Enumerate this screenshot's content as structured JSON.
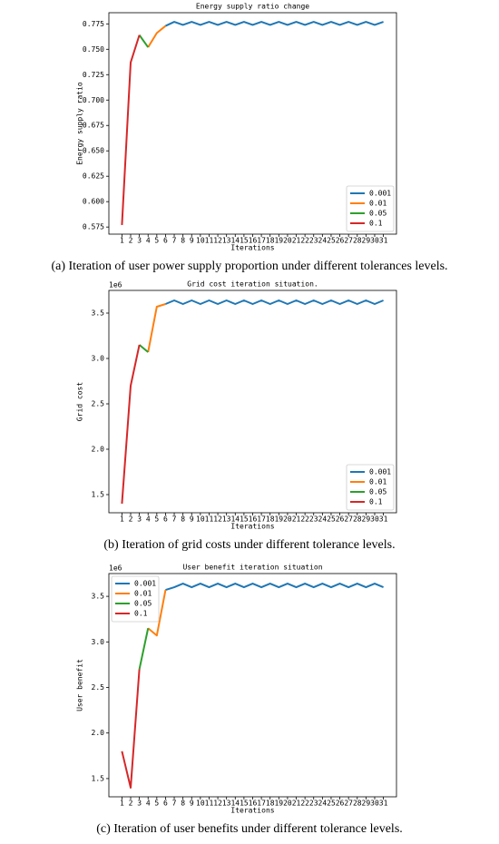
{
  "chart_data": [
    {
      "type": "line",
      "title": "Energy supply ratio change",
      "xlabel": "Iterations",
      "ylabel": "Energy supply ratio",
      "caption": "(a) Iteration of user power supply proportion under different tolerances levels.",
      "x": [
        1,
        2,
        3,
        4,
        5,
        6,
        7,
        8,
        9,
        10,
        11,
        12,
        13,
        14,
        15,
        16,
        17,
        18,
        19,
        20,
        21,
        22,
        23,
        24,
        25,
        26,
        27,
        28,
        29,
        30,
        31
      ],
      "xlim": [
        -0.5,
        32.5
      ],
      "xticks": [
        1,
        2,
        3,
        4,
        5,
        6,
        7,
        8,
        9,
        10,
        11,
        12,
        13,
        14,
        15,
        16,
        17,
        18,
        19,
        20,
        21,
        22,
        23,
        24,
        25,
        26,
        27,
        28,
        29,
        30,
        31
      ],
      "ylim": [
        0.568,
        0.786
      ],
      "yticks": [
        0.575,
        {
          "value": 0.6,
          "label": "0.600"
        },
        0.625,
        {
          "value": 0.65,
          "label": "0.650"
        },
        0.675,
        {
          "value": 0.7,
          "label": "0.700"
        },
        0.725,
        {
          "value": 0.75,
          "label": "0.750"
        },
        0.775
      ],
      "legend": "lower right",
      "series": [
        {
          "name": "0.001",
          "color": "#1f77b4",
          "values": [
            null,
            null,
            null,
            null,
            null,
            0.773,
            0.777,
            0.774,
            0.777,
            0.774,
            0.777,
            0.774,
            0.777,
            0.774,
            0.777,
            0.774,
            0.777,
            0.774,
            0.777,
            0.774,
            0.777,
            0.774,
            0.777,
            0.774,
            0.777,
            0.774,
            0.777,
            0.774,
            0.777,
            0.774,
            0.777
          ]
        },
        {
          "name": "0.01",
          "color": "#ff7f0e",
          "values": [
            null,
            null,
            null,
            0.752,
            0.766,
            0.773,
            null,
            null,
            null,
            null,
            null,
            null,
            null,
            null,
            null,
            null,
            null,
            null,
            null,
            null,
            null,
            null,
            null,
            null,
            null,
            null,
            null,
            null,
            null,
            null,
            null
          ]
        },
        {
          "name": "0.05",
          "color": "#2ca02c",
          "values": [
            null,
            null,
            0.764,
            0.752,
            null,
            null,
            null,
            null,
            null,
            null,
            null,
            null,
            null,
            null,
            null,
            null,
            null,
            null,
            null,
            null,
            null,
            null,
            null,
            null,
            null,
            null,
            null,
            null,
            null,
            null,
            null
          ]
        },
        {
          "name": "0.1",
          "color": "#d62728",
          "values": [
            0.577,
            0.737,
            0.764,
            null,
            null,
            null,
            null,
            null,
            null,
            null,
            null,
            null,
            null,
            null,
            null,
            null,
            null,
            null,
            null,
            null,
            null,
            null,
            null,
            null,
            null,
            null,
            null,
            null,
            null,
            null,
            null
          ]
        }
      ]
    },
    {
      "type": "line",
      "title": "Grid cost iteration situation.",
      "xlabel": "Iterations",
      "ylabel": "Grid cost",
      "y_offset_label": "1e6",
      "caption": "(b) Iteration of grid costs under different tolerance levels.",
      "x": [
        1,
        2,
        3,
        4,
        5,
        6,
        7,
        8,
        9,
        10,
        11,
        12,
        13,
        14,
        15,
        16,
        17,
        18,
        19,
        20,
        21,
        22,
        23,
        24,
        25,
        26,
        27,
        28,
        29,
        30,
        31
      ],
      "xlim": [
        -0.5,
        32.5
      ],
      "xticks": [
        1,
        2,
        3,
        4,
        5,
        6,
        7,
        8,
        9,
        10,
        11,
        12,
        13,
        14,
        15,
        16,
        17,
        18,
        19,
        20,
        21,
        22,
        23,
        24,
        25,
        26,
        27,
        28,
        29,
        30,
        31
      ],
      "ylim": [
        1.3,
        3.75
      ],
      "yticks": [
        1.5,
        {
          "value": 2,
          "label": "2.0"
        },
        2.5,
        {
          "value": 3,
          "label": "3.0"
        },
        3.5
      ],
      "legend": "lower right",
      "series": [
        {
          "name": "0.001",
          "color": "#1f77b4",
          "values": [
            null,
            null,
            null,
            null,
            null,
            3.6,
            3.64,
            3.6,
            3.64,
            3.6,
            3.64,
            3.6,
            3.64,
            3.6,
            3.64,
            3.6,
            3.64,
            3.6,
            3.64,
            3.6,
            3.64,
            3.6,
            3.64,
            3.6,
            3.64,
            3.6,
            3.64,
            3.6,
            3.64,
            3.6,
            3.64
          ]
        },
        {
          "name": "0.01",
          "color": "#ff7f0e",
          "values": [
            null,
            null,
            null,
            3.07,
            3.57,
            3.6,
            null,
            null,
            null,
            null,
            null,
            null,
            null,
            null,
            null,
            null,
            null,
            null,
            null,
            null,
            null,
            null,
            null,
            null,
            null,
            null,
            null,
            null,
            null,
            null,
            null
          ]
        },
        {
          "name": "0.05",
          "color": "#2ca02c",
          "values": [
            null,
            null,
            3.15,
            3.07,
            null,
            null,
            null,
            null,
            null,
            null,
            null,
            null,
            null,
            null,
            null,
            null,
            null,
            null,
            null,
            null,
            null,
            null,
            null,
            null,
            null,
            null,
            null,
            null,
            null,
            null,
            null
          ]
        },
        {
          "name": "0.1",
          "color": "#d62728",
          "values": [
            1.4,
            2.7,
            3.15,
            null,
            null,
            null,
            null,
            null,
            null,
            null,
            null,
            null,
            null,
            null,
            null,
            null,
            null,
            null,
            null,
            null,
            null,
            null,
            null,
            null,
            null,
            null,
            null,
            null,
            null,
            null,
            null
          ]
        }
      ]
    },
    {
      "type": "line",
      "title": "User benefit iteration situation",
      "xlabel": "Iterations",
      "ylabel": "User benefit",
      "y_offset_label": "1e6",
      "caption": "(c) Iteration of user benefits under different tolerance levels.",
      "x": [
        1,
        2,
        3,
        4,
        5,
        6,
        7,
        8,
        9,
        10,
        11,
        12,
        13,
        14,
        15,
        16,
        17,
        18,
        19,
        20,
        21,
        22,
        23,
        24,
        25,
        26,
        27,
        28,
        29,
        30,
        31
      ],
      "xlim": [
        -0.5,
        32.5
      ],
      "xticks": [
        1,
        2,
        3,
        4,
        5,
        6,
        7,
        8,
        9,
        10,
        11,
        12,
        13,
        14,
        15,
        16,
        17,
        18,
        19,
        20,
        21,
        22,
        23,
        24,
        25,
        26,
        27,
        28,
        29,
        30,
        31
      ],
      "ylim": [
        1.3,
        3.75
      ],
      "yticks": [
        1.5,
        {
          "value": 2,
          "label": "2.0"
        },
        2.5,
        {
          "value": 3,
          "label": "3.0"
        },
        3.5
      ],
      "legend": "upper left",
      "series": [
        {
          "name": "0.001",
          "color": "#1f77b4",
          "values": [
            null,
            null,
            null,
            null,
            null,
            3.57,
            3.6,
            3.64,
            3.6,
            3.64,
            3.6,
            3.64,
            3.6,
            3.64,
            3.6,
            3.64,
            3.6,
            3.64,
            3.6,
            3.64,
            3.6,
            3.64,
            3.6,
            3.64,
            3.6,
            3.64,
            3.6,
            3.64,
            3.6,
            3.64,
            3.6
          ]
        },
        {
          "name": "0.01",
          "color": "#ff7f0e",
          "values": [
            null,
            null,
            null,
            3.15,
            3.07,
            3.57,
            null,
            null,
            null,
            null,
            null,
            null,
            null,
            null,
            null,
            null,
            null,
            null,
            null,
            null,
            null,
            null,
            null,
            null,
            null,
            null,
            null,
            null,
            null,
            null,
            null
          ]
        },
        {
          "name": "0.05",
          "color": "#2ca02c",
          "values": [
            null,
            null,
            2.7,
            3.15,
            null,
            null,
            null,
            null,
            null,
            null,
            null,
            null,
            null,
            null,
            null,
            null,
            null,
            null,
            null,
            null,
            null,
            null,
            null,
            null,
            null,
            null,
            null,
            null,
            null,
            null,
            null
          ]
        },
        {
          "name": "0.1",
          "color": "#d62728",
          "values": [
            1.8,
            1.4,
            2.7,
            null,
            null,
            null,
            null,
            null,
            null,
            null,
            null,
            null,
            null,
            null,
            null,
            null,
            null,
            null,
            null,
            null,
            null,
            null,
            null,
            null,
            null,
            null,
            null,
            null,
            null,
            null,
            null
          ]
        }
      ]
    }
  ]
}
